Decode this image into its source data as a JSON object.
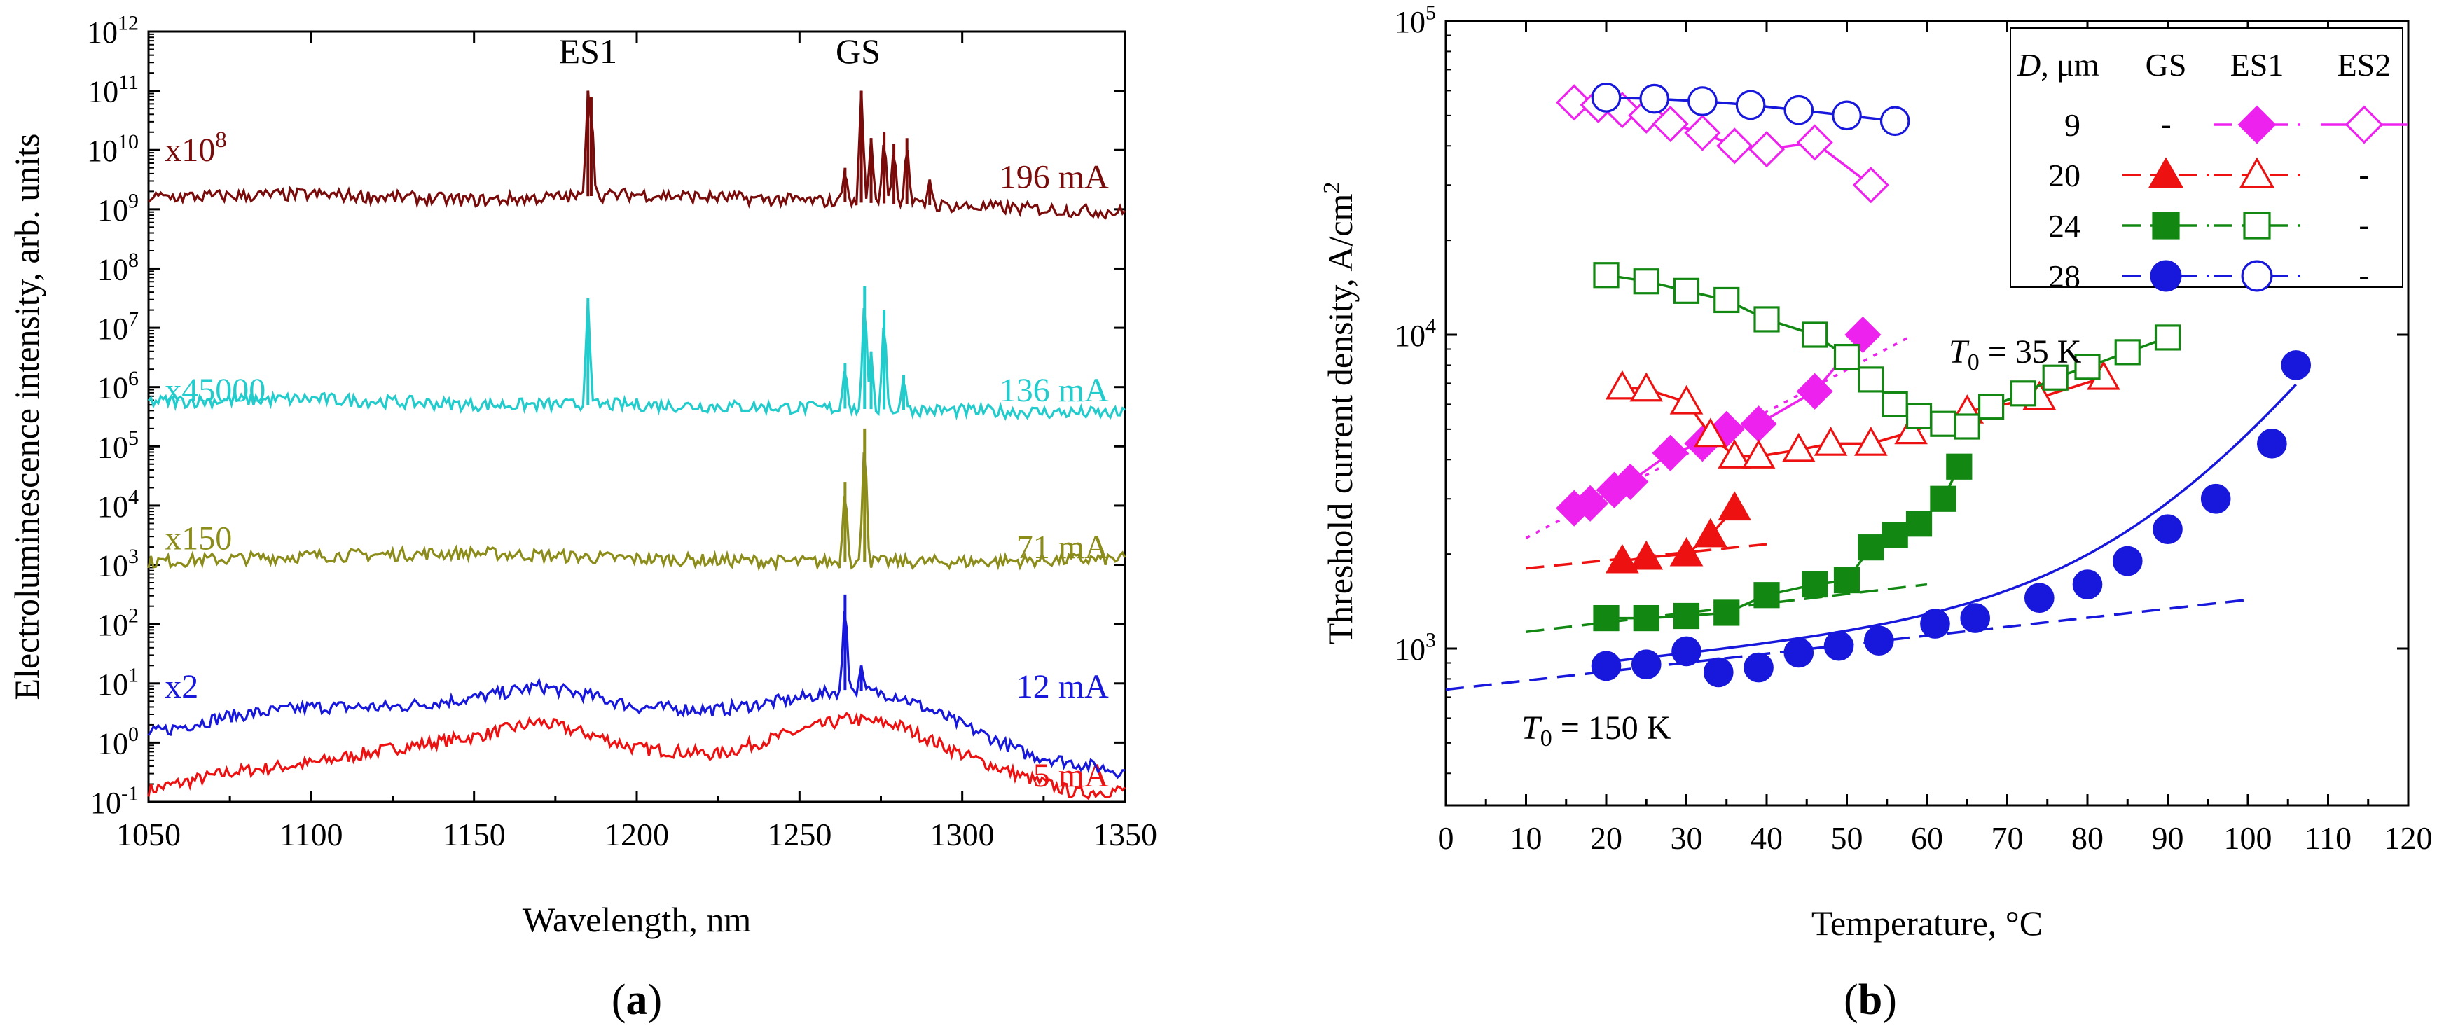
{
  "chart_data": [
    {
      "panel": "a",
      "type": "line",
      "panel_label": "(a)",
      "xlabel": "Wavelength, nm",
      "ylabel": "Electroluminescence intensity, arb. units",
      "xlim": [
        1050,
        1350
      ],
      "ylim_log10": [
        -1,
        12
      ],
      "yscale": "log",
      "x_ticks": [
        1050,
        1100,
        1150,
        1200,
        1250,
        1300,
        1350
      ],
      "y_tick_labels": [
        {
          "base": "10",
          "exp": "-1"
        },
        {
          "base": "10",
          "exp": "0"
        },
        {
          "base": "10",
          "exp": "1"
        },
        {
          "base": "10",
          "exp": "2"
        },
        {
          "base": "10",
          "exp": "3"
        },
        {
          "base": "10",
          "exp": "4"
        },
        {
          "base": "10",
          "exp": "5"
        },
        {
          "base": "10",
          "exp": "6"
        },
        {
          "base": "10",
          "exp": "7"
        },
        {
          "base": "10",
          "exp": "8"
        },
        {
          "base": "10",
          "exp": "9"
        },
        {
          "base": "10",
          "exp": "10"
        },
        {
          "base": "10",
          "exp": "11"
        },
        {
          "base": "10",
          "exp": "12"
        }
      ],
      "peak_labels": [
        {
          "text": "ES1",
          "x": 1185
        },
        {
          "text": "GS",
          "x": 1268
        }
      ],
      "series": [
        {
          "name": "5 mA",
          "current_label": "5 mA",
          "scale_label": "",
          "color": "#ee1111",
          "x": [
            1050,
            1075,
            1100,
            1125,
            1150,
            1170,
            1185,
            1200,
            1225,
            1250,
            1265,
            1280,
            1300,
            1320,
            1335,
            1350
          ],
          "log10": [
            -0.8,
            -0.5,
            -0.35,
            -0.1,
            0.1,
            0.35,
            0.15,
            -0.1,
            -0.2,
            0.2,
            0.4,
            0.3,
            -0.2,
            -0.6,
            -0.85,
            -0.8
          ],
          "peaks": []
        },
        {
          "name": "12 mA",
          "current_label": "12 mA",
          "scale_label": "x2",
          "color": "#1818dd",
          "x": [
            1050,
            1075,
            1100,
            1125,
            1150,
            1170,
            1185,
            1200,
            1225,
            1250,
            1265,
            1280,
            1300,
            1320,
            1335,
            1350
          ],
          "log10": [
            0.15,
            0.45,
            0.6,
            0.6,
            0.75,
            0.95,
            0.8,
            0.6,
            0.55,
            0.75,
            0.9,
            0.8,
            0.3,
            -0.2,
            -0.35,
            -0.5
          ],
          "peaks": [
            {
              "x": 1264,
              "log10": 2.5
            },
            {
              "x": 1269,
              "log10": 1.3
            }
          ]
        },
        {
          "name": "71 mA",
          "current_label": "71 mA",
          "scale_label": "x150",
          "color": "#8c8c1a",
          "x": [
            1050,
            1100,
            1150,
            1200,
            1250,
            1300,
            1350
          ],
          "log10": [
            3.05,
            3.15,
            3.2,
            3.1,
            3.05,
            3.05,
            3.1
          ],
          "peaks": [
            {
              "x": 1264,
              "log10": 4.4
            },
            {
              "x": 1270,
              "log10": 5.3
            }
          ]
        },
        {
          "name": "136 mA",
          "current_label": "136 mA",
          "scale_label": "x45000",
          "color": "#22cccc",
          "x": [
            1050,
            1100,
            1150,
            1200,
            1250,
            1300,
            1350
          ],
          "log10": [
            5.75,
            5.8,
            5.7,
            5.7,
            5.65,
            5.6,
            5.55
          ],
          "peaks": [
            {
              "x": 1185,
              "log10": 7.5
            },
            {
              "x": 1264,
              "log10": 6.4
            },
            {
              "x": 1270,
              "log10": 7.7
            },
            {
              "x": 1272,
              "log10": 6.6
            },
            {
              "x": 1276,
              "log10": 7.3
            },
            {
              "x": 1282,
              "log10": 6.2
            }
          ]
        },
        {
          "name": "196 mA",
          "current_label": "196 mA",
          "scale_label_base": "x10",
          "scale_label_exp": "8",
          "color": "#7a0b0b",
          "x": [
            1050,
            1100,
            1150,
            1200,
            1250,
            1300,
            1350
          ],
          "log10": [
            9.2,
            9.25,
            9.15,
            9.25,
            9.15,
            9.05,
            8.95
          ],
          "peaks": [
            {
              "x": 1185,
              "log10": 11.0
            },
            {
              "x": 1186,
              "log10": 10.9
            },
            {
              "x": 1264,
              "log10": 9.7
            },
            {
              "x": 1269,
              "log10": 11.0
            },
            {
              "x": 1272,
              "log10": 10.2
            },
            {
              "x": 1276,
              "log10": 10.3
            },
            {
              "x": 1279,
              "log10": 10.1
            },
            {
              "x": 1283,
              "log10": 10.2
            },
            {
              "x": 1290,
              "log10": 9.5
            }
          ]
        }
      ]
    },
    {
      "panel": "b",
      "type": "scatter",
      "panel_label": "(b)",
      "xlabel": "Temperature, °C",
      "ylabel": "Threshold current density, A/cm",
      "ylabel_sup": "2",
      "xlim": [
        0,
        120
      ],
      "ylim_log10": [
        2.5,
        5
      ],
      "yscale": "log",
      "x_ticks": [
        0,
        10,
        20,
        30,
        40,
        50,
        60,
        70,
        80,
        90,
        100,
        110,
        120
      ],
      "y_tick_labels": [
        {
          "base": "10",
          "exp": "3"
        },
        {
          "base": "10",
          "exp": "4"
        },
        {
          "base": "10",
          "exp": "5"
        }
      ],
      "annotations": {
        "t0_35": {
          "prefix": "T",
          "sub": "0",
          "text": " = 35 K"
        },
        "t0_150": {
          "prefix": "T",
          "sub": "0",
          "text": " = 150 K"
        }
      },
      "legend": {
        "header": {
          "d_label": "D",
          "d_unit": ", μm",
          "gs": "GS",
          "es1": "ES1",
          "es2": "ES2"
        },
        "rows": [
          {
            "d": "9",
            "gs": "-",
            "es1": "filled-diamond",
            "es2": "open-diamond",
            "color": "#ee22ee"
          },
          {
            "d": "20",
            "gs": "filled-triangle",
            "es1": "open-triangle",
            "es2": "-",
            "color": "#ee1111"
          },
          {
            "d": "24",
            "gs": "filled-square",
            "es1": "open-square",
            "es2": "-",
            "color": "#128812"
          },
          {
            "d": "28",
            "gs": "filled-circle",
            "es1": "open-circle",
            "es2": "-",
            "color": "#1818dd"
          }
        ]
      },
      "series": [
        {
          "name": "D=9 ES1",
          "color": "#ee22ee",
          "marker": "diamond",
          "filled": true,
          "x": [
            16,
            18,
            21,
            23,
            28,
            32,
            35,
            39,
            46,
            52
          ],
          "y": [
            2800,
            2900,
            3200,
            3400,
            4200,
            4500,
            5000,
            5200,
            6600,
            10000
          ]
        },
        {
          "name": "D=9 ES2",
          "color": "#ee22ee",
          "marker": "diamond",
          "filled": false,
          "x": [
            16,
            19,
            22,
            25,
            28,
            32,
            36,
            40,
            46,
            53
          ],
          "y": [
            55000,
            54000,
            52000,
            50000,
            47000,
            44000,
            40000,
            39000,
            41000,
            30000
          ]
        },
        {
          "name": "D=20 GS",
          "color": "#ee1111",
          "marker": "triangle",
          "filled": true,
          "x": [
            22,
            25,
            30,
            33,
            36
          ],
          "y": [
            1900,
            1950,
            2000,
            2300,
            2800
          ]
        },
        {
          "name": "D=20 ES1",
          "color": "#ee1111",
          "marker": "triangle",
          "filled": false,
          "x": [
            22,
            25,
            30,
            33,
            36,
            39,
            44,
            48,
            53,
            58,
            65,
            74,
            82
          ],
          "y": [
            6800,
            6700,
            6100,
            4800,
            4100,
            4100,
            4300,
            4500,
            4500,
            4900,
            5700,
            6300,
            7300
          ]
        },
        {
          "name": "D=24 GS",
          "color": "#128812",
          "marker": "square",
          "filled": true,
          "x": [
            20,
            25,
            30,
            35,
            40,
            46,
            50,
            53,
            56,
            59,
            62,
            64
          ],
          "y": [
            1250,
            1250,
            1270,
            1300,
            1480,
            1600,
            1650,
            2100,
            2300,
            2500,
            3000,
            3800
          ]
        },
        {
          "name": "D=24 ES1",
          "color": "#128812",
          "marker": "square",
          "filled": false,
          "x": [
            20,
            25,
            30,
            35,
            40,
            46,
            50,
            53,
            56,
            59,
            62,
            65,
            68,
            72,
            76,
            80,
            85,
            90
          ],
          "y": [
            15500,
            14800,
            13800,
            12900,
            11200,
            10000,
            8500,
            7200,
            6000,
            5500,
            5200,
            5100,
            5900,
            6500,
            7300,
            7900,
            8800,
            9800
          ]
        },
        {
          "name": "D=28 GS",
          "color": "#1818dd",
          "marker": "circle",
          "filled": true,
          "x": [
            20,
            25,
            30,
            34,
            39,
            44,
            49,
            54,
            61,
            66,
            74,
            80,
            85,
            90,
            96,
            103,
            106
          ],
          "y": [
            880,
            890,
            980,
            840,
            870,
            970,
            1020,
            1060,
            1200,
            1250,
            1450,
            1600,
            1900,
            2400,
            3000,
            4500,
            8000
          ]
        },
        {
          "name": "D=28 ES1",
          "color": "#1818dd",
          "marker": "circle",
          "filled": false,
          "x": [
            20,
            26,
            32,
            38,
            44,
            50,
            56
          ],
          "y": [
            57000,
            56500,
            55500,
            54000,
            52000,
            50000,
            48000
          ]
        }
      ],
      "fit_lines": [
        {
          "name": "D=9 ES1 T0 fit",
          "color": "#ee22ee",
          "x": [
            10,
            58
          ],
          "y": [
            2250,
            9900
          ]
        },
        {
          "name": "D=20 GS T0 fit",
          "color": "#ee1111",
          "x": [
            10,
            40
          ],
          "y": [
            1800,
            2150
          ]
        },
        {
          "name": "D=24 GS T0 fit",
          "color": "#128812",
          "x": [
            10,
            60
          ],
          "y": [
            1130,
            1600
          ]
        },
        {
          "name": "D=28 GS T0=150K fit",
          "color": "#1818dd",
          "x": [
            0,
            100
          ],
          "y": [
            740,
            1430
          ]
        }
      ]
    }
  ]
}
